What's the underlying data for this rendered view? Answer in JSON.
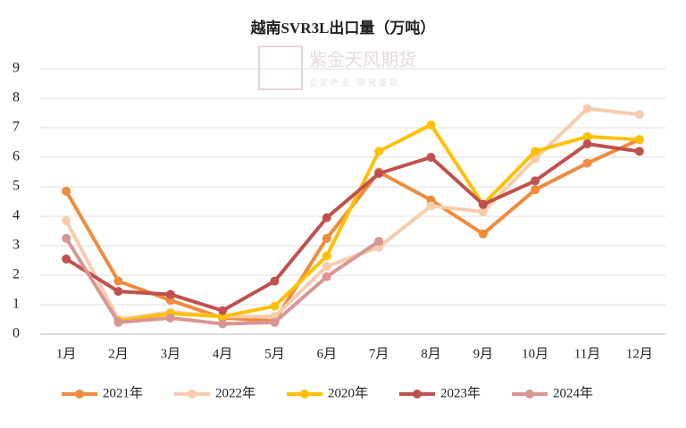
{
  "chart_data": {
    "type": "line",
    "title": "越南SVR3L出口量（万吨）",
    "watermark": "紫金天风期货",
    "watermark_sub": "立足产业 研究驱动",
    "categories": [
      "1月",
      "2月",
      "3月",
      "4月",
      "5月",
      "6月",
      "7月",
      "8月",
      "9月",
      "10月",
      "11月",
      "12月"
    ],
    "series": [
      {
        "name": "2021年",
        "color": "#f08a3c",
        "values": [
          4.85,
          1.8,
          1.15,
          0.55,
          0.45,
          3.25,
          5.5,
          4.55,
          3.4,
          4.9,
          5.8,
          6.6
        ]
      },
      {
        "name": "2022年",
        "color": "#f8cbad",
        "values": [
          3.85,
          0.5,
          0.75,
          0.6,
          0.6,
          2.3,
          2.95,
          4.35,
          4.15,
          5.95,
          7.65,
          7.45
        ]
      },
      {
        "name": "2020年",
        "color": "#ffc000",
        "values": [
          null,
          0.45,
          0.7,
          0.6,
          0.95,
          2.65,
          6.2,
          7.1,
          4.4,
          6.2,
          6.7,
          6.6
        ]
      },
      {
        "name": "2023年",
        "color": "#c0504d",
        "values": [
          2.55,
          1.45,
          1.35,
          0.8,
          1.8,
          3.95,
          5.45,
          6.0,
          4.4,
          5.2,
          6.45,
          6.2
        ]
      },
      {
        "name": "2024年",
        "color": "#d99594",
        "values": [
          3.25,
          0.4,
          0.55,
          0.35,
          0.4,
          1.95,
          3.15,
          null,
          null,
          null,
          null,
          null
        ]
      }
    ],
    "ylim": [
      0,
      9
    ],
    "yticks": [
      0,
      1,
      2,
      3,
      4,
      5,
      6,
      7,
      8,
      9
    ],
    "grid": true,
    "legend": "bottom"
  }
}
